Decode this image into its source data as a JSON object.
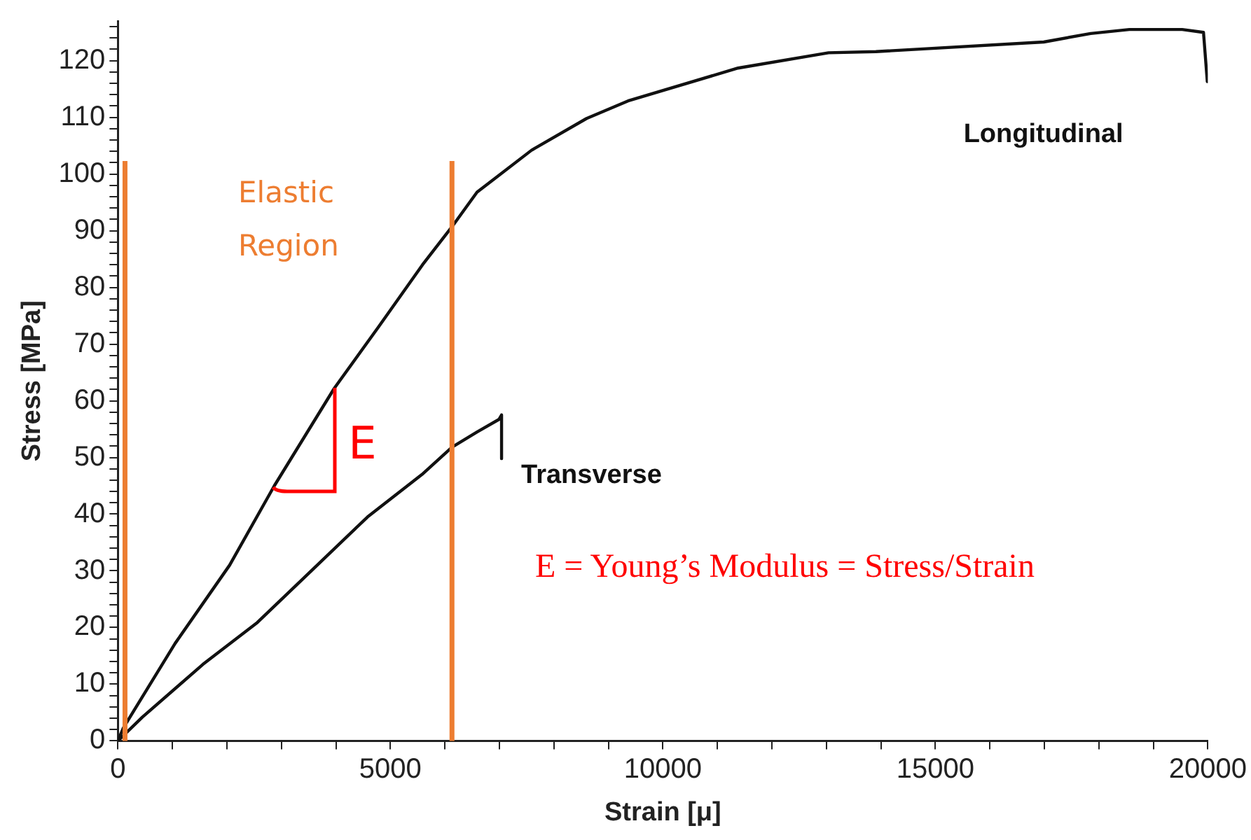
{
  "chart_data": {
    "type": "line",
    "xlabel": "Strain [μ]",
    "ylabel": "Stress [MPa]",
    "xlim": [
      0,
      20000
    ],
    "ylim": [
      0,
      127
    ],
    "xticks": [
      0,
      {
        "value": 1000,
        "label": null
      },
      {
        "value": 2000,
        "label": null
      },
      {
        "value": 3000,
        "label": null
      },
      {
        "value": 4000,
        "label": null
      },
      5000,
      {
        "value": 6000,
        "label": null
      },
      {
        "value": 7000,
        "label": null
      },
      {
        "value": 8000,
        "label": null
      },
      {
        "value": 9000,
        "label": null
      },
      10000,
      {
        "value": 11000,
        "label": null
      },
      {
        "value": 12000,
        "label": null
      },
      {
        "value": 13000,
        "label": null
      },
      {
        "value": 14000,
        "label": null
      },
      15000,
      {
        "value": 16000,
        "label": null
      },
      {
        "value": 17000,
        "label": null
      },
      {
        "value": 18000,
        "label": null
      },
      {
        "value": 19000,
        "label": null
      },
      20000
    ],
    "yticks": [
      0,
      {
        "value": 2,
        "label": null
      },
      {
        "value": 4,
        "label": null
      },
      {
        "value": 6,
        "label": null
      },
      {
        "value": 8,
        "label": null
      },
      10,
      {
        "value": 12,
        "label": null
      },
      {
        "value": 14,
        "label": null
      },
      {
        "value": 16,
        "label": null
      },
      {
        "value": 18,
        "label": null
      },
      20,
      {
        "value": 22,
        "label": null
      },
      {
        "value": 24,
        "label": null
      },
      {
        "value": 26,
        "label": null
      },
      {
        "value": 28,
        "label": null
      },
      30,
      {
        "value": 32,
        "label": null
      },
      {
        "value": 34,
        "label": null
      },
      {
        "value": 36,
        "label": null
      },
      {
        "value": 38,
        "label": null
      },
      40,
      {
        "value": 42,
        "label": null
      },
      {
        "value": 44,
        "label": null
      },
      {
        "value": 46,
        "label": null
      },
      {
        "value": 48,
        "label": null
      },
      50,
      {
        "value": 52,
        "label": null
      },
      {
        "value": 54,
        "label": null
      },
      {
        "value": 56,
        "label": null
      },
      {
        "value": 58,
        "label": null
      },
      60,
      {
        "value": 62,
        "label": null
      },
      {
        "value": 64,
        "label": null
      },
      {
        "value": 66,
        "label": null
      },
      {
        "value": 68,
        "label": null
      },
      70,
      {
        "value": 72,
        "label": null
      },
      {
        "value": 74,
        "label": null
      },
      {
        "value": 76,
        "label": null
      },
      {
        "value": 78,
        "label": null
      },
      80,
      {
        "value": 82,
        "label": null
      },
      {
        "value": 84,
        "label": null
      },
      {
        "value": 86,
        "label": null
      },
      {
        "value": 88,
        "label": null
      },
      90,
      {
        "value": 92,
        "label": null
      },
      {
        "value": 94,
        "label": null
      },
      {
        "value": 96,
        "label": null
      },
      {
        "value": 98,
        "label": null
      },
      100,
      {
        "value": 102,
        "label": null
      },
      {
        "value": 104,
        "label": null
      },
      {
        "value": 106,
        "label": null
      },
      {
        "value": 108,
        "label": null
      },
      110,
      {
        "value": 112,
        "label": null
      },
      {
        "value": 114,
        "label": null
      },
      {
        "value": 116,
        "label": null
      },
      {
        "value": 118,
        "label": null
      },
      120,
      {
        "value": 122,
        "label": null
      },
      {
        "value": 124,
        "label": null
      },
      {
        "value": 126,
        "label": null
      }
    ],
    "grid": false,
    "legend": false,
    "marker": "none",
    "line_style": "solid",
    "series": [
      {
        "name": "Longitudinal",
        "color": "#111111",
        "x": [
          0,
          100,
          1050,
          2050,
          2870,
          3970,
          4780,
          5590,
          6130,
          6590,
          7590,
          8600,
          9360,
          11380,
          13040,
          13910,
          16990,
          17850,
          18560,
          19530,
          19920,
          19990
        ],
        "values": [
          0,
          2.3,
          17.2,
          31,
          45,
          62.2,
          73,
          84,
          90.7,
          96.8,
          104.2,
          109.8,
          112.9,
          118.7,
          121.4,
          121.6,
          123.3,
          124.8,
          125.5,
          125.5,
          125,
          116.3
        ]
      },
      {
        "name": "Transverse",
        "color": "#111111",
        "x": [
          0,
          450,
          1560,
          2560,
          3570,
          4580,
          5580,
          6130,
          6590,
          6990,
          7040,
          7040
        ],
        "values": [
          0,
          4.2,
          13.5,
          20.9,
          30.2,
          39.5,
          47,
          51.8,
          54.5,
          56.7,
          57.5,
          49.8
        ]
      }
    ],
    "ref_lines": [
      {
        "axis": "x",
        "value": 130,
        "color": "#ed7d31"
      },
      {
        "axis": "x",
        "value": 6130,
        "color": "#ed7d31"
      }
    ],
    "annotations": [
      "Elastic Region",
      {
        "text": "E",
        "x": 3970,
        "y": 62.2
      },
      "E = Young’s Modulus = Stress/Strain"
    ]
  }
}
